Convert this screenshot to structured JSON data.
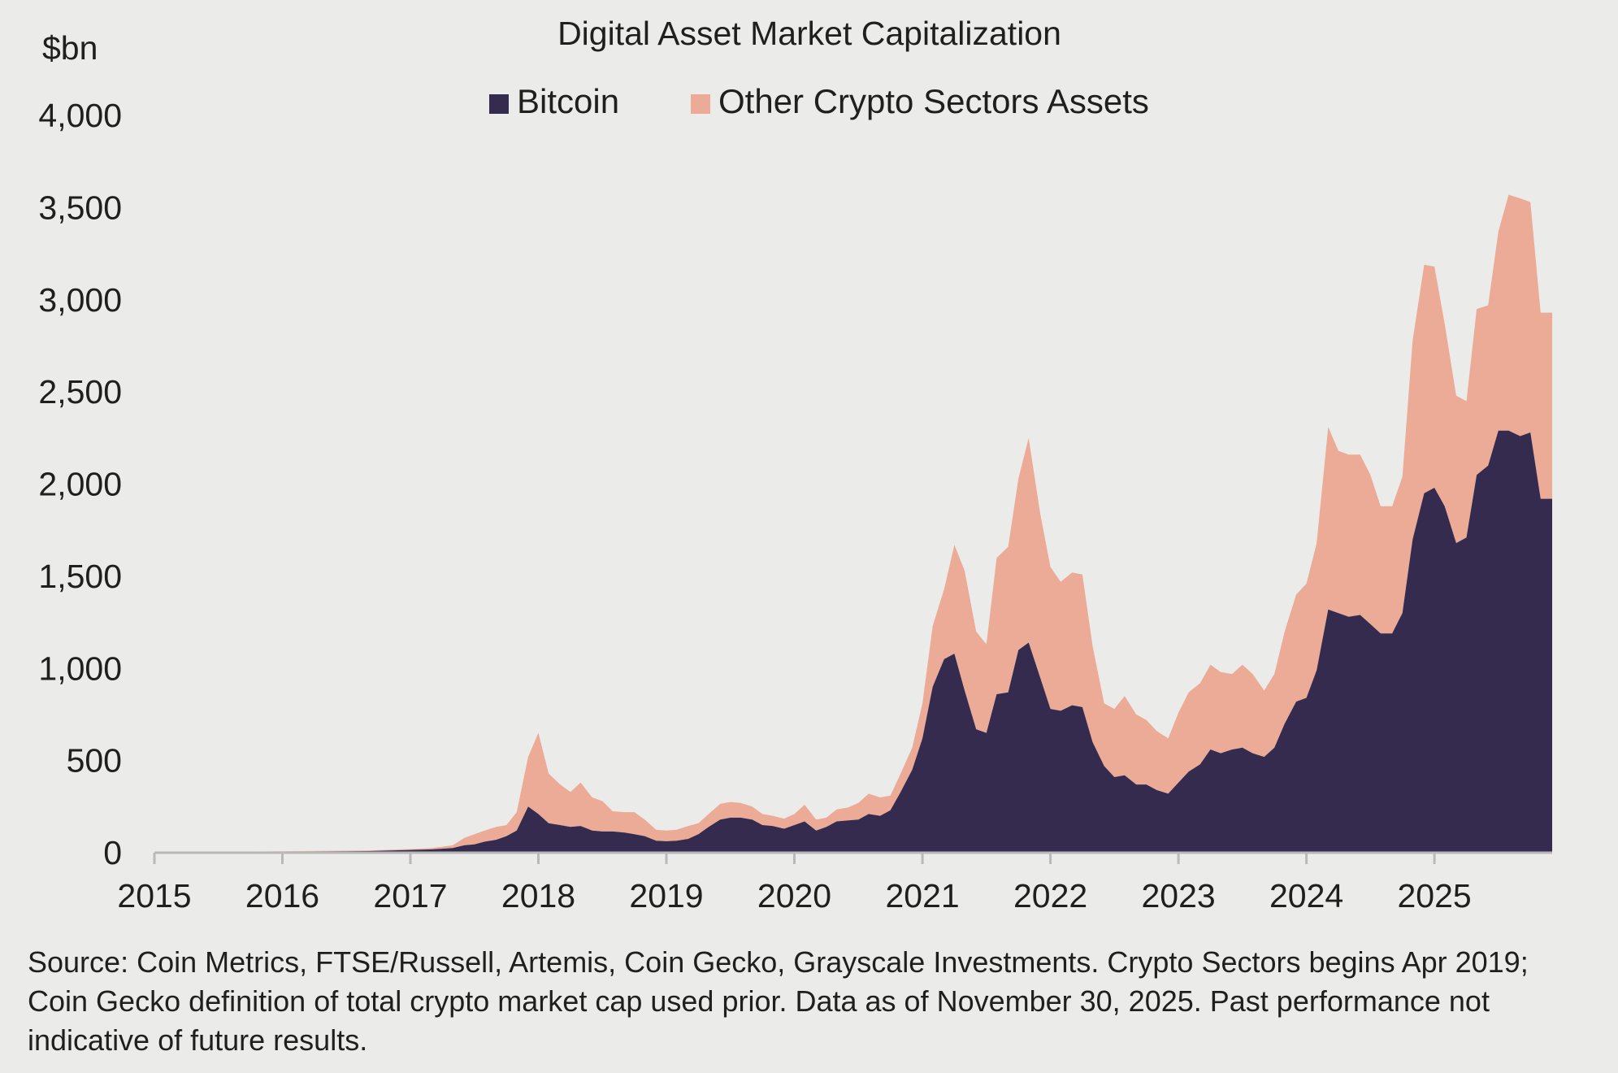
{
  "chart_data": {
    "type": "area",
    "stacked": true,
    "title": "Digital Asset Market Capitalization",
    "unit_label": "$bn",
    "xlabel": "",
    "ylabel": "$bn",
    "ylim": [
      0,
      4000
    ],
    "xlim": [
      2015.0,
      2025.92
    ],
    "y_ticks": [
      "0",
      "500",
      "1,000",
      "1,500",
      "2,000",
      "2,500",
      "3,000",
      "3,500",
      "4,000"
    ],
    "x_ticks": [
      "2015",
      "2016",
      "2017",
      "2018",
      "2019",
      "2020",
      "2021",
      "2022",
      "2023",
      "2024",
      "2025"
    ],
    "legend_position": "top-center",
    "grid": false,
    "colors": {
      "bitcoin": "#352b4e",
      "other": "#ebab96",
      "background": "#ebebea"
    },
    "x": [
      2015.0,
      2015.5,
      2016.0,
      2016.33,
      2016.67,
      2017.0,
      2017.17,
      2017.33,
      2017.42,
      2017.5,
      2017.58,
      2017.67,
      2017.75,
      2017.83,
      2017.92,
      2018.0,
      2018.08,
      2018.17,
      2018.25,
      2018.33,
      2018.42,
      2018.5,
      2018.58,
      2018.67,
      2018.75,
      2018.83,
      2018.92,
      2019.0,
      2019.08,
      2019.17,
      2019.25,
      2019.33,
      2019.42,
      2019.5,
      2019.58,
      2019.67,
      2019.75,
      2019.83,
      2019.92,
      2020.0,
      2020.08,
      2020.17,
      2020.25,
      2020.33,
      2020.42,
      2020.5,
      2020.58,
      2020.67,
      2020.75,
      2020.83,
      2020.92,
      2021.0,
      2021.08,
      2021.17,
      2021.25,
      2021.33,
      2021.42,
      2021.5,
      2021.58,
      2021.67,
      2021.75,
      2021.83,
      2021.92,
      2022.0,
      2022.08,
      2022.17,
      2022.25,
      2022.33,
      2022.42,
      2022.5,
      2022.58,
      2022.67,
      2022.75,
      2022.83,
      2022.92,
      2023.0,
      2023.08,
      2023.17,
      2023.25,
      2023.33,
      2023.42,
      2023.5,
      2023.58,
      2023.67,
      2023.75,
      2023.83,
      2023.92,
      2024.0,
      2024.08,
      2024.17,
      2024.25,
      2024.33,
      2024.42,
      2024.5,
      2024.58,
      2024.67,
      2024.75,
      2024.83,
      2024.92,
      2025.0,
      2025.08,
      2025.17,
      2025.25,
      2025.33,
      2025.42,
      2025.5,
      2025.58,
      2025.67,
      2025.75,
      2025.83,
      2025.92
    ],
    "series": [
      {
        "name": "Bitcoin",
        "values": [
          4,
          4,
          6,
          7,
          9,
          15,
          18,
          25,
          40,
          45,
          60,
          70,
          90,
          120,
          250,
          210,
          160,
          150,
          140,
          145,
          120,
          115,
          115,
          110,
          100,
          90,
          65,
          62,
          65,
          75,
          100,
          140,
          180,
          190,
          190,
          180,
          150,
          145,
          130,
          150,
          170,
          120,
          140,
          170,
          175,
          180,
          210,
          200,
          230,
          330,
          450,
          620,
          900,
          1050,
          1080,
          880,
          670,
          650,
          860,
          870,
          1100,
          1140,
          950,
          780,
          770,
          800,
          790,
          600,
          470,
          410,
          420,
          370,
          370,
          340,
          320,
          380,
          440,
          480,
          560,
          540,
          560,
          570,
          540,
          520,
          570,
          700,
          820,
          840,
          990,
          1320,
          1300,
          1280,
          1290,
          1240,
          1190,
          1190,
          1300,
          1700,
          1950,
          1980,
          1880,
          1680,
          1710,
          2050,
          2100,
          2290,
          2290,
          2260,
          2280,
          1920,
          1920
        ]
      },
      {
        "name": "Other Crypto Sectors Assets",
        "values": [
          1,
          1,
          2,
          3,
          3,
          5,
          7,
          15,
          40,
          55,
          60,
          70,
          60,
          100,
          270,
          440,
          270,
          220,
          190,
          235,
          180,
          165,
          110,
          110,
          120,
          90,
          60,
          58,
          60,
          70,
          60,
          70,
          85,
          85,
          80,
          70,
          60,
          55,
          55,
          60,
          90,
          60,
          50,
          65,
          70,
          90,
          110,
          100,
          80,
          100,
          120,
          190,
          330,
          380,
          590,
          650,
          530,
          480,
          740,
          790,
          930,
          1110,
          890,
          770,
          700,
          720,
          720,
          520,
          340,
          370,
          430,
          380,
          350,
          320,
          300,
          380,
          430,
          440,
          460,
          440,
          410,
          450,
          430,
          360,
          400,
          500,
          580,
          620,
          690,
          990,
          880,
          880,
          870,
          810,
          690,
          690,
          740,
          1080,
          1240,
          1200,
          990,
          800,
          740,
          900,
          870,
          1080,
          1280,
          1290,
          1250,
          1010,
          1010
        ]
      }
    ]
  },
  "source_note": "Source: Coin Metrics, FTSE/Russell, Artemis, Coin Gecko, Grayscale Investments. Crypto Sectors begins Apr 2019; Coin Gecko definition of total crypto market cap used prior. Data as of November 30, 2025. Past performance not indicative of future results."
}
